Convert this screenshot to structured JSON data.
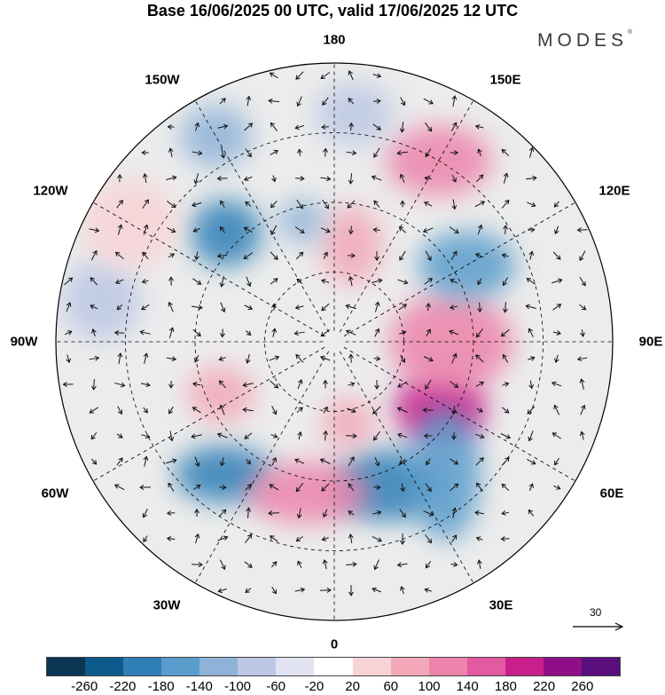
{
  "title": "Base 16/06/2025 00 UTC, valid 17/06/2025 12 UTC",
  "brand": "MODES",
  "brand_mark": "®",
  "longitude_labels": {
    "top": "180",
    "bottom": "0",
    "left": "90W",
    "right": "90E",
    "nw1": "150W",
    "nw2": "120W",
    "ne1": "150E",
    "ne2": "120E",
    "sw1": "60W",
    "sw2": "30W",
    "se1": "60E",
    "se2": "30E"
  },
  "reference_vector": "30",
  "colorbar": {
    "colors": [
      "#0b3552",
      "#0e5a8c",
      "#2f7fb7",
      "#5a9ccb",
      "#8fb3d8",
      "#bcc8e4",
      "#e2e3f1",
      "#ffffff",
      "#f8d3d6",
      "#f2a8b9",
      "#ec84ab",
      "#e25aa0",
      "#c81f8a",
      "#8e0f87",
      "#5a0e7d"
    ],
    "tick_labels": [
      "-260",
      "-220",
      "-180",
      "-140",
      "-100",
      "-60",
      "-20",
      "20",
      "60",
      "100",
      "140",
      "180",
      "220",
      "260"
    ]
  },
  "anomaly_blobs": [
    {
      "lon": 58,
      "lat_r": 0.45,
      "rx": 52,
      "ry": 40,
      "color": "#c81f8a"
    },
    {
      "lon": 90,
      "lat_r": 0.42,
      "rx": 70,
      "ry": 55,
      "color": "#ec84ab"
    },
    {
      "lon": 20,
      "lat_r": 0.55,
      "rx": 60,
      "ry": 40,
      "color": "#2f7fb7"
    },
    {
      "lon": 40,
      "lat_r": 0.62,
      "rx": 40,
      "ry": 75,
      "color": "#5a9ccb"
    },
    {
      "lon": 120,
      "lat_r": 0.55,
      "rx": 55,
      "ry": 38,
      "color": "#5a9ccb"
    },
    {
      "lon": 150,
      "lat_r": 0.75,
      "rx": 60,
      "ry": 40,
      "color": "#ec84ab"
    },
    {
      "lon": -135,
      "lat_r": 0.55,
      "rx": 40,
      "ry": 38,
      "color": "#2f7fb7"
    },
    {
      "lon": -40,
      "lat_r": 0.62,
      "rx": 55,
      "ry": 32,
      "color": "#2f7fb7"
    },
    {
      "lon": -10,
      "lat_r": 0.55,
      "rx": 70,
      "ry": 35,
      "color": "#ec84ab"
    },
    {
      "lon": -65,
      "lat_r": 0.45,
      "rx": 38,
      "ry": 32,
      "color": "#f2a8b9"
    },
    {
      "lon": -100,
      "lat_r": 0.85,
      "rx": 45,
      "ry": 45,
      "color": "#bcc8e4"
    },
    {
      "lon": 170,
      "lat_r": 0.35,
      "rx": 35,
      "ry": 45,
      "color": "#f2a8b9"
    },
    {
      "lon": -165,
      "lat_r": 0.45,
      "rx": 25,
      "ry": 25,
      "color": "#8fb3d8"
    },
    {
      "lon": -150,
      "lat_r": 0.85,
      "rx": 40,
      "ry": 35,
      "color": "#8fb3d8"
    },
    {
      "lon": -120,
      "lat_r": 0.85,
      "rx": 55,
      "ry": 50,
      "color": "#f8d3d6"
    },
    {
      "lon": 10,
      "lat_r": 0.3,
      "rx": 30,
      "ry": 30,
      "color": "#f2a8b9"
    },
    {
      "lon": 175,
      "lat_r": 0.82,
      "rx": 45,
      "ry": 35,
      "color": "#bcc8e4"
    }
  ]
}
